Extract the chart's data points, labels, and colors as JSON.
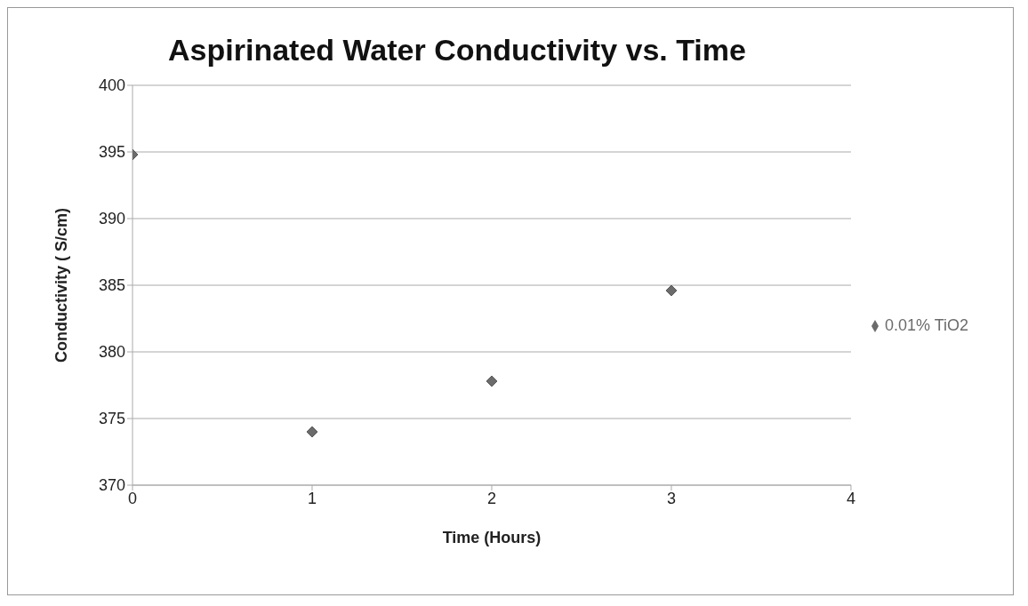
{
  "chart_data": {
    "type": "scatter",
    "title": "Aspirinated Water Conductivity vs. Time",
    "xlabel": "Time (Hours)",
    "ylabel": "Conductivity (  S/cm)",
    "x": [
      0,
      1,
      2,
      3
    ],
    "series": [
      {
        "name": "0.01% TiO2",
        "color": "#6b6b6b",
        "values": [
          394.8,
          374.0,
          377.8,
          384.6
        ]
      }
    ],
    "xlim": [
      0,
      4
    ],
    "xticks": [
      0,
      1,
      2,
      3,
      4
    ],
    "ylim": [
      370,
      400
    ],
    "yticks": [
      370,
      375,
      380,
      385,
      390,
      395,
      400
    ],
    "grid": "y",
    "legend": "right",
    "marker": "diamond"
  }
}
